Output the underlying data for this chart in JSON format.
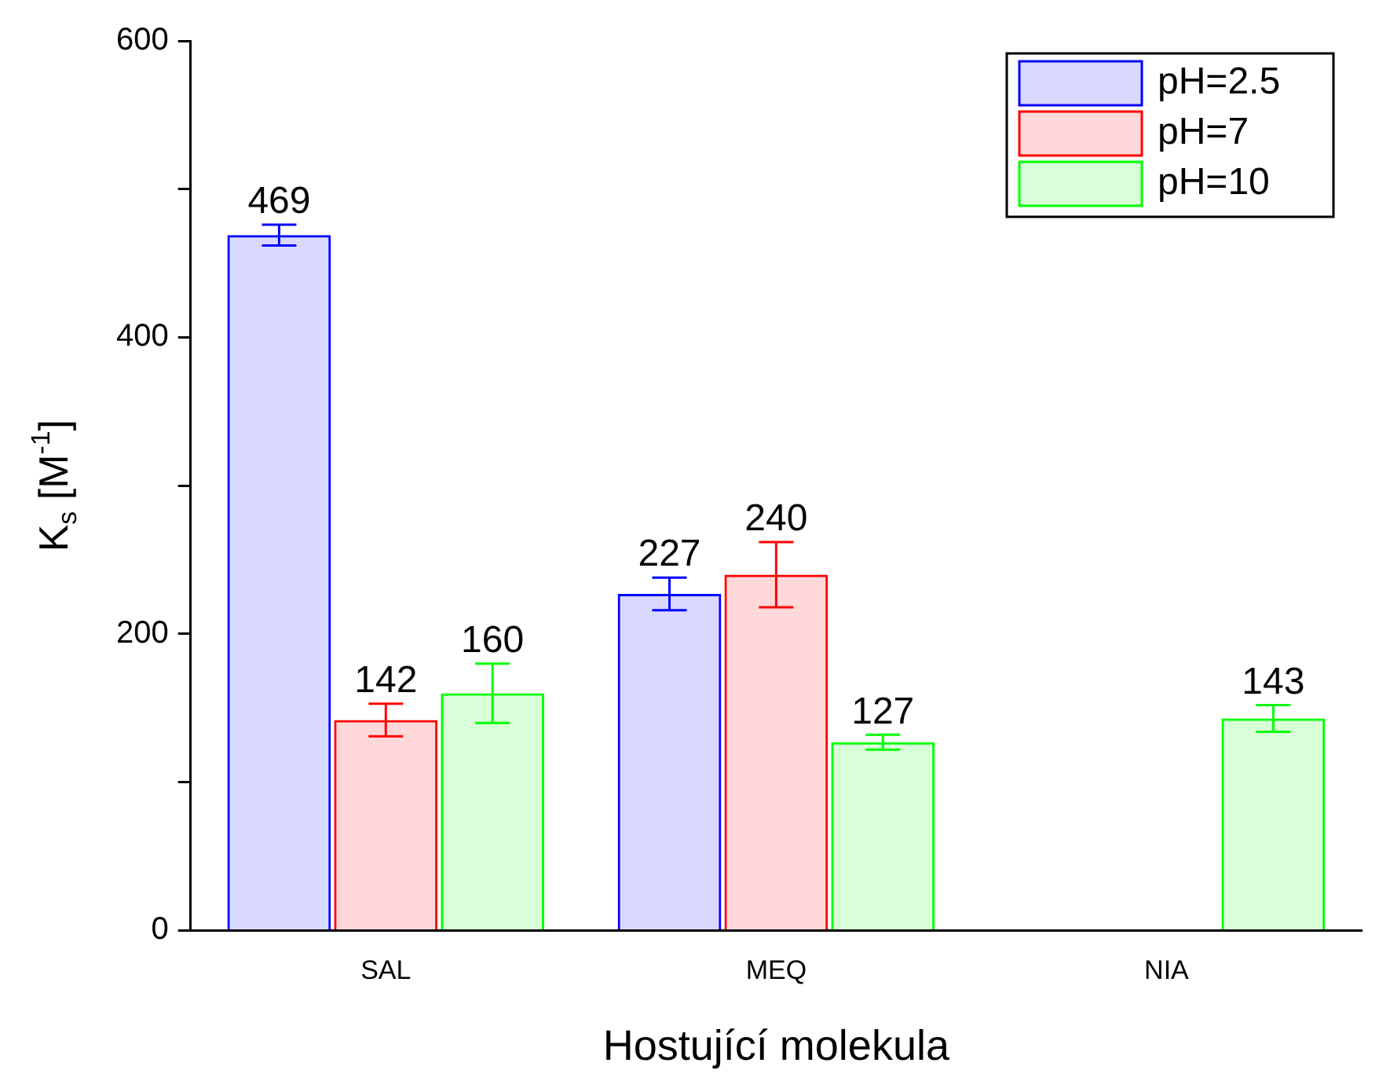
{
  "chart_data": {
    "type": "bar",
    "xlabel": "Hostující molekula",
    "ylabel": "K$_{s}$ [M$^{-1}$]",
    "categories": [
      "SAL",
      "MEQ",
      "NIA"
    ],
    "series": [
      {
        "name": "pH=2.5",
        "color": "#0000ff",
        "values": [
          469,
          227,
          null
        ],
        "errors": [
          7,
          11,
          null
        ]
      },
      {
        "name": "pH=7",
        "color": "#ff0000",
        "values": [
          142,
          240,
          null
        ],
        "errors": [
          11,
          22,
          null
        ]
      },
      {
        "name": "pH=10",
        "color": "#00ff00",
        "values": [
          160,
          127,
          143
        ],
        "errors": [
          20,
          5,
          9
        ]
      }
    ],
    "ylim": [
      0,
      600
    ],
    "yticks": [
      0,
      {
        "value": 100,
        "label": null
      },
      200,
      {
        "value": 300,
        "label": null
      },
      400,
      {
        "value": 500,
        "label": null
      },
      600
    ],
    "data_labels": true,
    "grid": false,
    "legend": "top right"
  }
}
